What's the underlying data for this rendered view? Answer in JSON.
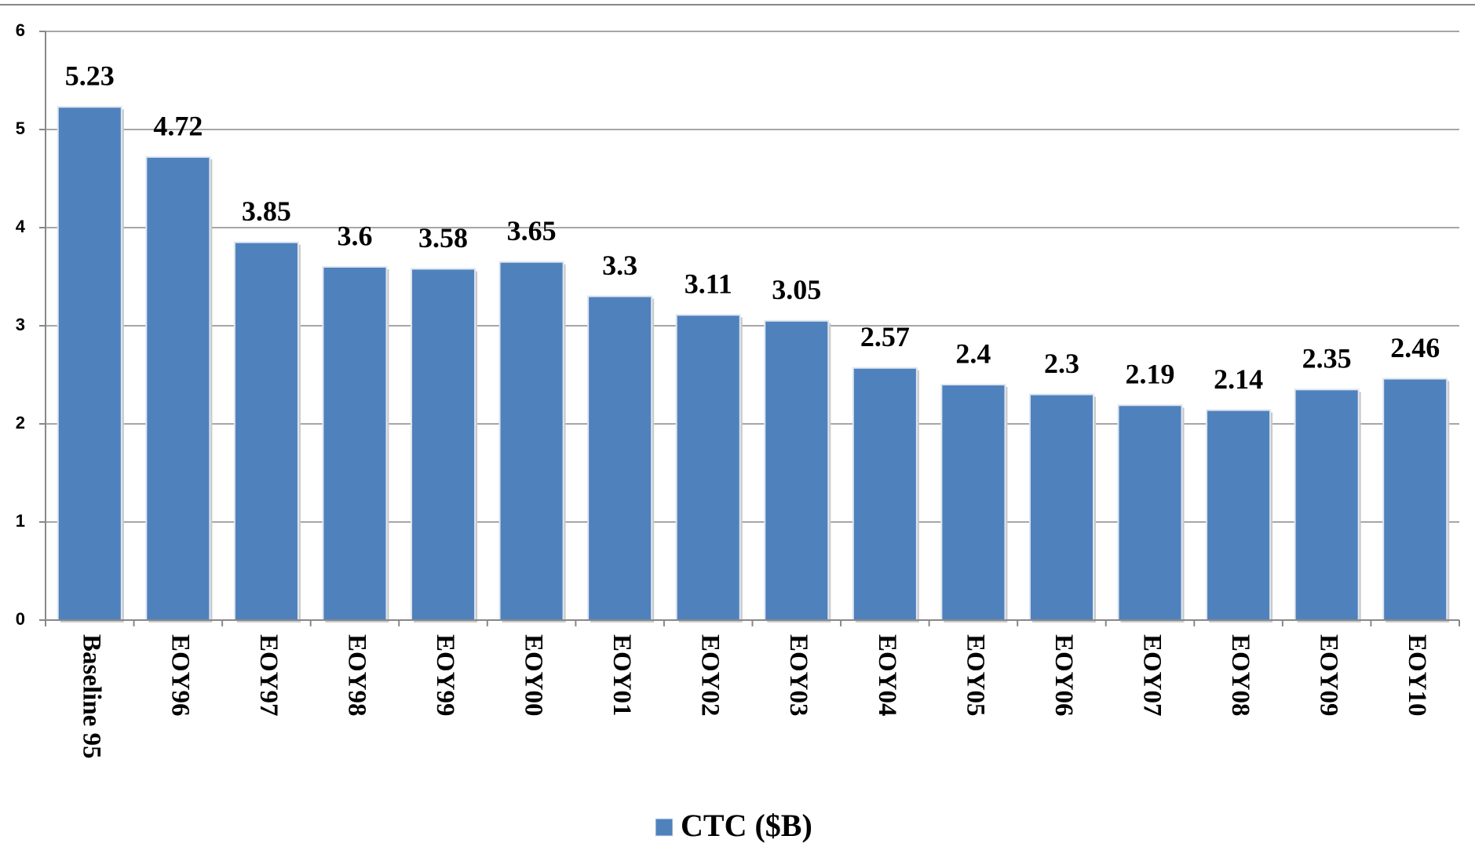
{
  "chart_data": {
    "type": "bar",
    "categories": [
      "Baseline 95",
      "EOY96",
      "EOY97",
      "EOY98",
      "EOY99",
      "EOY00",
      "EOY01",
      "EOY02",
      "EOY03",
      "EOY04",
      "EOY05",
      "EOY06",
      "EOY07",
      "EOY08",
      "EOY09",
      "EOY10"
    ],
    "series": [
      {
        "name": "CTC ($B)",
        "color": "#4f81bd",
        "values": [
          5.23,
          4.72,
          3.85,
          3.6,
          3.58,
          3.65,
          3.3,
          3.11,
          3.05,
          2.57,
          2.4,
          2.3,
          2.19,
          2.14,
          2.35,
          2.46
        ]
      }
    ],
    "ylim": [
      0,
      6
    ],
    "yticks": [
      0,
      1,
      2,
      3,
      4,
      5,
      6
    ],
    "grid": true,
    "legend": "bottom"
  }
}
